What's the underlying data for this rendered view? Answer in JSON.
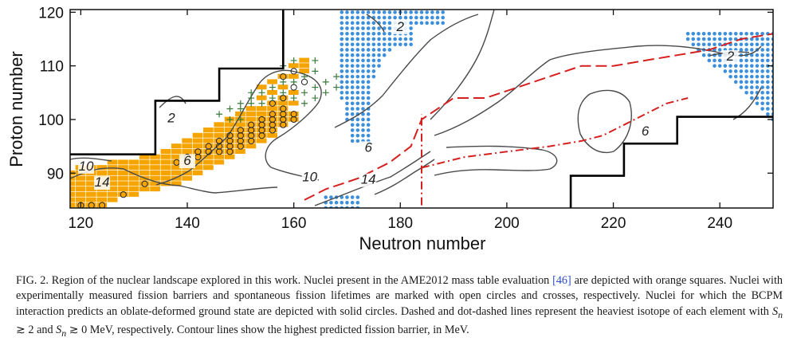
{
  "chart_data": {
    "type": "scatter",
    "xlabel": "Neutron number",
    "ylabel": "Proton number",
    "xlim": [
      118,
      250
    ],
    "ylim": [
      83.5,
      120.5
    ],
    "xticks": [
      120,
      140,
      160,
      180,
      200,
      220,
      240
    ],
    "yticks": [
      90,
      100,
      110,
      120
    ],
    "grid": false,
    "colors": {
      "ame_orange": "#f5a400",
      "oblate_blue": "#3d8fdc",
      "contour_gray": "#4a4a4a",
      "dashed_red": "#d61f1f",
      "crosses_green": "#3a7a3a",
      "boundary_black": "#000000"
    },
    "contour_labels": [
      "14",
      "10",
      "6",
      "2",
      "10",
      "14",
      "6",
      "2",
      "6",
      "2"
    ],
    "series": {
      "ame2012_orange_squares": [
        [
          118,
          84
        ],
        [
          118,
          85
        ],
        [
          118,
          86
        ],
        [
          118,
          87
        ],
        [
          118,
          88
        ],
        [
          118,
          89
        ],
        [
          118,
          90
        ],
        [
          120,
          84
        ],
        [
          120,
          85
        ],
        [
          120,
          86
        ],
        [
          120,
          87
        ],
        [
          120,
          88
        ],
        [
          120,
          89
        ],
        [
          120,
          90
        ],
        [
          120,
          91
        ],
        [
          122,
          84
        ],
        [
          122,
          85
        ],
        [
          122,
          86
        ],
        [
          122,
          87
        ],
        [
          122,
          88
        ],
        [
          122,
          89
        ],
        [
          122,
          90
        ],
        [
          122,
          91
        ],
        [
          124,
          84
        ],
        [
          124,
          85
        ],
        [
          124,
          86
        ],
        [
          124,
          87
        ],
        [
          124,
          88
        ],
        [
          124,
          89
        ],
        [
          124,
          90
        ],
        [
          124,
          91
        ],
        [
          126,
          85
        ],
        [
          126,
          86
        ],
        [
          126,
          87
        ],
        [
          126,
          88
        ],
        [
          126,
          89
        ],
        [
          126,
          90
        ],
        [
          126,
          91
        ],
        [
          126,
          92
        ],
        [
          128,
          86
        ],
        [
          128,
          87
        ],
        [
          128,
          88
        ],
        [
          128,
          89
        ],
        [
          128,
          90
        ],
        [
          128,
          91
        ],
        [
          128,
          92
        ],
        [
          130,
          86
        ],
        [
          130,
          87
        ],
        [
          130,
          88
        ],
        [
          130,
          89
        ],
        [
          130,
          90
        ],
        [
          130,
          91
        ],
        [
          130,
          92
        ],
        [
          132,
          87
        ],
        [
          132,
          88
        ],
        [
          132,
          89
        ],
        [
          132,
          90
        ],
        [
          132,
          91
        ],
        [
          132,
          92
        ],
        [
          132,
          93
        ],
        [
          134,
          87
        ],
        [
          134,
          88
        ],
        [
          134,
          89
        ],
        [
          134,
          90
        ],
        [
          134,
          91
        ],
        [
          134,
          92
        ],
        [
          134,
          93
        ],
        [
          136,
          88
        ],
        [
          136,
          89
        ],
        [
          136,
          90
        ],
        [
          136,
          91
        ],
        [
          136,
          92
        ],
        [
          136,
          93
        ],
        [
          136,
          94
        ],
        [
          138,
          88
        ],
        [
          138,
          89
        ],
        [
          138,
          90
        ],
        [
          138,
          91
        ],
        [
          138,
          92
        ],
        [
          138,
          93
        ],
        [
          138,
          94
        ],
        [
          138,
          95
        ],
        [
          140,
          89
        ],
        [
          140,
          90
        ],
        [
          140,
          91
        ],
        [
          140,
          92
        ],
        [
          140,
          93
        ],
        [
          140,
          94
        ],
        [
          140,
          95
        ],
        [
          140,
          96
        ],
        [
          142,
          90
        ],
        [
          142,
          91
        ],
        [
          142,
          92
        ],
        [
          142,
          93
        ],
        [
          142,
          94
        ],
        [
          142,
          95
        ],
        [
          142,
          96
        ],
        [
          142,
          97
        ],
        [
          144,
          91
        ],
        [
          144,
          92
        ],
        [
          144,
          93
        ],
        [
          144,
          94
        ],
        [
          144,
          95
        ],
        [
          144,
          96
        ],
        [
          144,
          97
        ],
        [
          144,
          98
        ],
        [
          146,
          92
        ],
        [
          146,
          93
        ],
        [
          146,
          94
        ],
        [
          146,
          95
        ],
        [
          146,
          96
        ],
        [
          146,
          97
        ],
        [
          146,
          98
        ],
        [
          146,
          99
        ],
        [
          148,
          93
        ],
        [
          148,
          94
        ],
        [
          148,
          95
        ],
        [
          148,
          96
        ],
        [
          148,
          97
        ],
        [
          148,
          98
        ],
        [
          148,
          99
        ],
        [
          148,
          100
        ],
        [
          150,
          94
        ],
        [
          150,
          95
        ],
        [
          150,
          96
        ],
        [
          150,
          97
        ],
        [
          150,
          98
        ],
        [
          150,
          99
        ],
        [
          150,
          100
        ],
        [
          150,
          101
        ],
        [
          152,
          95
        ],
        [
          152,
          96
        ],
        [
          152,
          97
        ],
        [
          152,
          98
        ],
        [
          152,
          99
        ],
        [
          152,
          100
        ],
        [
          152,
          101
        ],
        [
          152,
          102
        ],
        [
          154,
          96
        ],
        [
          154,
          97
        ],
        [
          154,
          98
        ],
        [
          154,
          99
        ],
        [
          154,
          100
        ],
        [
          154,
          101
        ],
        [
          154,
          102
        ],
        [
          154,
          104
        ],
        [
          154,
          106
        ],
        [
          156,
          97
        ],
        [
          156,
          98
        ],
        [
          156,
          99
        ],
        [
          156,
          100
        ],
        [
          156,
          101
        ],
        [
          156,
          102
        ],
        [
          156,
          103
        ],
        [
          156,
          105
        ],
        [
          156,
          107
        ],
        [
          158,
          99
        ],
        [
          158,
          100
        ],
        [
          158,
          101
        ],
        [
          158,
          102
        ],
        [
          158,
          103
        ],
        [
          158,
          104
        ],
        [
          158,
          106
        ],
        [
          158,
          108
        ],
        [
          160,
          100
        ],
        [
          160,
          101
        ],
        [
          160,
          103
        ],
        [
          160,
          105
        ],
        [
          160,
          108
        ],
        [
          160,
          110
        ],
        [
          162,
          109
        ],
        [
          162,
          110
        ],
        [
          162,
          111
        ]
      ],
      "fission_barrier_open_circles": [
        [
          120,
          84
        ],
        [
          122,
          84
        ],
        [
          124,
          84
        ],
        [
          128,
          86
        ],
        [
          132,
          88
        ],
        [
          138,
          92
        ],
        [
          140,
          93
        ],
        [
          142,
          93
        ],
        [
          142,
          94
        ],
        [
          144,
          94
        ],
        [
          144,
          95
        ],
        [
          146,
          94
        ],
        [
          146,
          95
        ],
        [
          146,
          96
        ],
        [
          148,
          94
        ],
        [
          148,
          95
        ],
        [
          148,
          96
        ],
        [
          148,
          97
        ],
        [
          150,
          95
        ],
        [
          150,
          96
        ],
        [
          150,
          97
        ],
        [
          150,
          98
        ],
        [
          152,
          96
        ],
        [
          152,
          97
        ],
        [
          152,
          98
        ],
        [
          152,
          99
        ],
        [
          154,
          97
        ],
        [
          154,
          98
        ],
        [
          154,
          99
        ],
        [
          154,
          100
        ],
        [
          156,
          98
        ],
        [
          156,
          99
        ],
        [
          156,
          100
        ],
        [
          156,
          101
        ],
        [
          158,
          99
        ],
        [
          158,
          100
        ],
        [
          158,
          101
        ],
        [
          158,
          102
        ],
        [
          160,
          100
        ],
        [
          160,
          101
        ],
        [
          156,
          103
        ],
        [
          158,
          104
        ],
        [
          160,
          106
        ],
        [
          162,
          107
        ],
        [
          160,
          109
        ],
        [
          158,
          108
        ]
      ],
      "spontaneous_fission_crosses": [
        [
          146,
          101
        ],
        [
          148,
          102
        ],
        [
          150,
          102
        ],
        [
          150,
          103
        ],
        [
          152,
          103
        ],
        [
          152,
          104
        ],
        [
          152,
          105
        ],
        [
          154,
          103
        ],
        [
          154,
          105
        ],
        [
          156,
          104
        ],
        [
          156,
          106
        ],
        [
          158,
          105
        ],
        [
          158,
          107
        ],
        [
          160,
          104
        ],
        [
          160,
          107
        ],
        [
          162,
          103
        ],
        [
          162,
          105
        ],
        [
          162,
          108
        ],
        [
          164,
          104
        ],
        [
          164,
          106
        ],
        [
          164,
          109
        ],
        [
          166,
          105
        ],
        [
          166,
          107
        ],
        [
          168,
          106
        ],
        [
          168,
          108
        ],
        [
          158,
          110
        ],
        [
          160,
          111
        ],
        [
          164,
          111
        ],
        [
          148,
          100
        ],
        [
          150,
          100
        ]
      ],
      "oblate_solid_circles_regions": [
        {
          "name": "upper-central",
          "n_range": [
            168,
            188
          ],
          "z_range": [
            96,
            120
          ]
        },
        {
          "name": "upper-right",
          "n_range": [
            234,
            250
          ],
          "z_range": [
            100,
            116
          ]
        },
        {
          "name": "bottom-small",
          "n_range": [
            166,
            172
          ],
          "z_range": [
            83.5,
            86
          ]
        }
      ],
      "sn_ge_2_dashed": [
        [
          162,
          85
        ],
        [
          166,
          87
        ],
        [
          172,
          89
        ],
        [
          178,
          92
        ],
        [
          182,
          95
        ],
        [
          184,
          100
        ],
        [
          190,
          104
        ],
        [
          196,
          104
        ],
        [
          202,
          106
        ],
        [
          208,
          108
        ],
        [
          214,
          110
        ],
        [
          220,
          110
        ],
        [
          226,
          111
        ],
        [
          232,
          112
        ],
        [
          238,
          113
        ],
        [
          244,
          115
        ],
        [
          250,
          116
        ]
      ],
      "sn_ge_0_dotdashed": [
        [
          184,
          84
        ],
        [
          184,
          90
        ],
        [
          184,
          101
        ],
        [
          184,
          91
        ],
        [
          192,
          93
        ],
        [
          200,
          94
        ],
        [
          208,
          95
        ],
        [
          214,
          96
        ],
        [
          218,
          97
        ],
        [
          222,
          99
        ],
        [
          226,
          101
        ],
        [
          230,
          103
        ],
        [
          234,
          104
        ]
      ],
      "experimental_boundary": [
        [
          118,
          93.5
        ],
        [
          134,
          93.5
        ],
        [
          134,
          103.5
        ],
        [
          146,
          103.5
        ],
        [
          146,
          109.5
        ],
        [
          158,
          109.5
        ],
        [
          158,
          120.5
        ]
      ],
      "theory_boundary": [
        [
          212,
          83.5
        ],
        [
          212,
          89.5
        ],
        [
          222,
          89.5
        ],
        [
          222,
          95.5
        ],
        [
          232,
          95.5
        ],
        [
          232,
          100.5
        ],
        [
          250,
          100.5
        ]
      ]
    }
  },
  "caption": {
    "lead": "FIG. 2. Region of the nuclear landscape explored in this work. Nuclei present in the AME2012 mass table evaluation ",
    "ref": "[46]",
    "body": " are depicted with orange squares. Nuclei with experimentally measured fission barriers and spontaneous fission lifetimes are marked with open circles and crosses, respectively. Nuclei for which the BCPM interaction predicts an oblate-deformed ground state are depicted with solid circles. Dashed and dot-dashed lines represent the heaviest isotope of each element with ",
    "sn_ge2": "S",
    "sn_sub": "n",
    "sn_cond1": " ≳ 2",
    "and": " and ",
    "sn_cond2": " ≳ 0 MeV, respectively. Contour lines show the highest predicted fission barrier, in MeV."
  }
}
